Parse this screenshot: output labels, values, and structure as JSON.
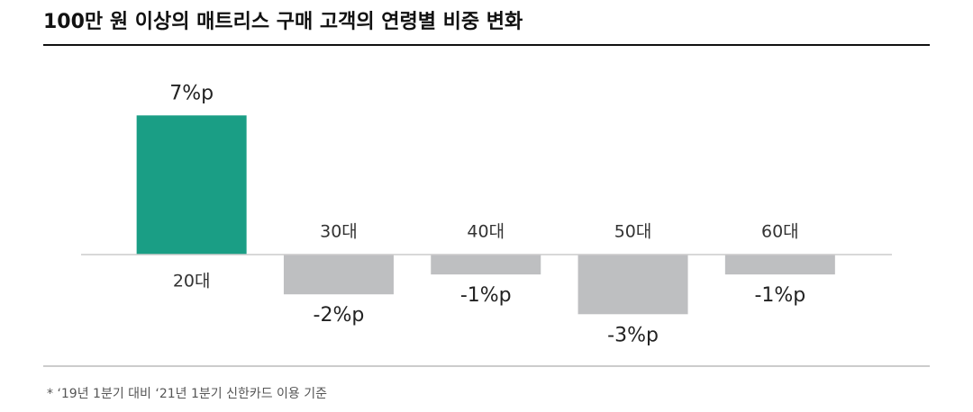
{
  "chart_data": {
    "type": "bar",
    "title": "100만 원 이상의 매트리스 구매 고객의 연령별 비중 변화",
    "categories": [
      "20대",
      "30대",
      "40대",
      "50대",
      "60대"
    ],
    "values": [
      7,
      -2,
      -1,
      -3,
      -1
    ],
    "value_labels": [
      "7%p",
      "-2%p",
      "-1%p",
      "-3%p",
      "-1%p"
    ],
    "colors": [
      "#1a9e85",
      "#bebfc1",
      "#bebfc1",
      "#bebfc1",
      "#bebfc1"
    ],
    "footnote": "* ‘19년 1분기 대비 ‘21년 1분기 신한카드 이용 기준"
  }
}
